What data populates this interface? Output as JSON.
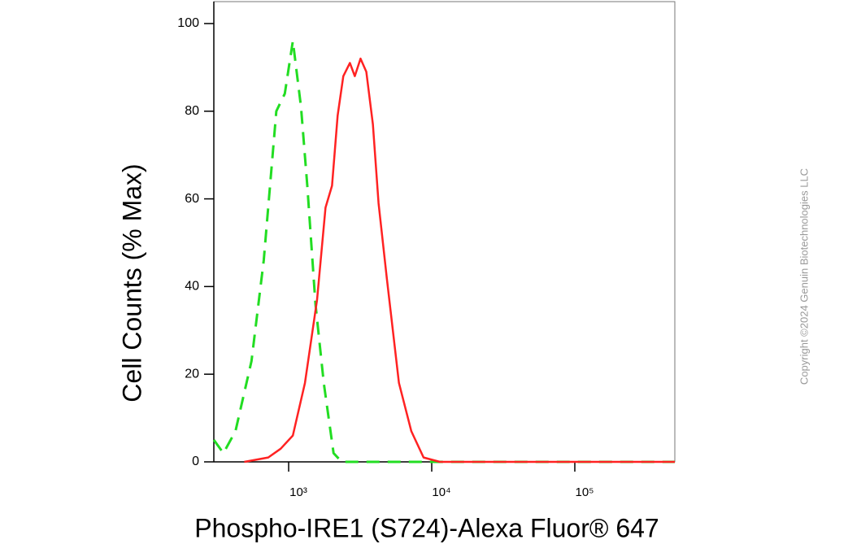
{
  "chart_data": {
    "type": "line",
    "xlabel": "Phospho-IRE1 (S724)-Alexa Fluor® 647",
    "ylabel": "Cell Counts (% Max)",
    "xscale": "log",
    "xlim": [
      300,
      500000
    ],
    "ylim": [
      0,
      105
    ],
    "xticks": [
      {
        "value": 1000,
        "label": "10³"
      },
      {
        "value": 10000,
        "label": "10⁴"
      },
      {
        "value": 100000,
        "label": "10⁵"
      }
    ],
    "yticks": [
      0,
      20,
      40,
      60,
      80,
      100
    ],
    "series": [
      {
        "color": "#22dd22",
        "dashed": true,
        "x": [
          300,
          350,
          425,
          550,
          670,
          820,
          940,
          1070,
          1220,
          1350,
          1540,
          1760,
          2060,
          2350,
          500000
        ],
        "values": [
          5,
          2,
          7,
          23,
          46,
          80,
          84,
          96,
          81,
          63,
          36,
          18,
          2,
          0,
          0
        ]
      },
      {
        "color": "#ff2222",
        "dashed": false,
        "x": [
          490,
          720,
          880,
          1070,
          1300,
          1580,
          1810,
          2010,
          2200,
          2410,
          2680,
          2900,
          3180,
          3490,
          3880,
          4250,
          4850,
          5900,
          7200,
          8770,
          11400,
          500000
        ],
        "values": [
          0,
          1,
          3,
          6,
          18,
          37,
          58,
          63,
          79,
          88,
          91,
          88,
          92,
          89,
          77,
          59,
          42,
          18,
          7,
          1,
          0,
          0
        ]
      }
    ]
  },
  "copyright": "Copyright ©2024 Genuin Biotechnologies LLC"
}
